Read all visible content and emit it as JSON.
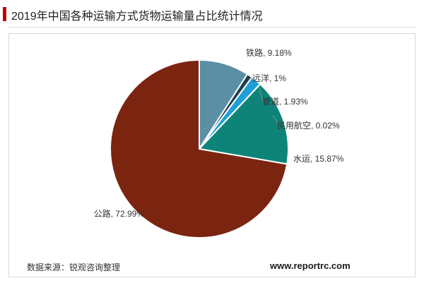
{
  "header": {
    "title": "2019年中国各种运输方式货物运输量占比统计情况"
  },
  "footer": {
    "source": "数据来源：锐观咨询整理",
    "website": "www.reportrc.com"
  },
  "colors": {
    "accent": "#c00000"
  },
  "chart_data": {
    "type": "pie",
    "title": "2019年中国各种运输方式货物运输量占比统计情况",
    "unit": "%",
    "slices": [
      {
        "label": "铁路",
        "value": 9.18,
        "display": "铁路, 9.18%",
        "color": "#5b8fa6"
      },
      {
        "label": "远洋",
        "value": 1,
        "display": "远洋, 1%",
        "color": "#1f3c4d"
      },
      {
        "label": "管道",
        "value": 1.93,
        "display": "管道, 1.93%",
        "color": "#1e9fd6"
      },
      {
        "label": "民用航空",
        "value": 0.02,
        "display": "民用航空, 0.02%",
        "color": "#0a5a72"
      },
      {
        "label": "水运",
        "value": 15.87,
        "display": "水运, 15.87%",
        "color": "#0e8478"
      },
      {
        "label": "公路",
        "value": 72.99,
        "display": "公路, 72.99%",
        "color": "#7b2410"
      }
    ]
  }
}
